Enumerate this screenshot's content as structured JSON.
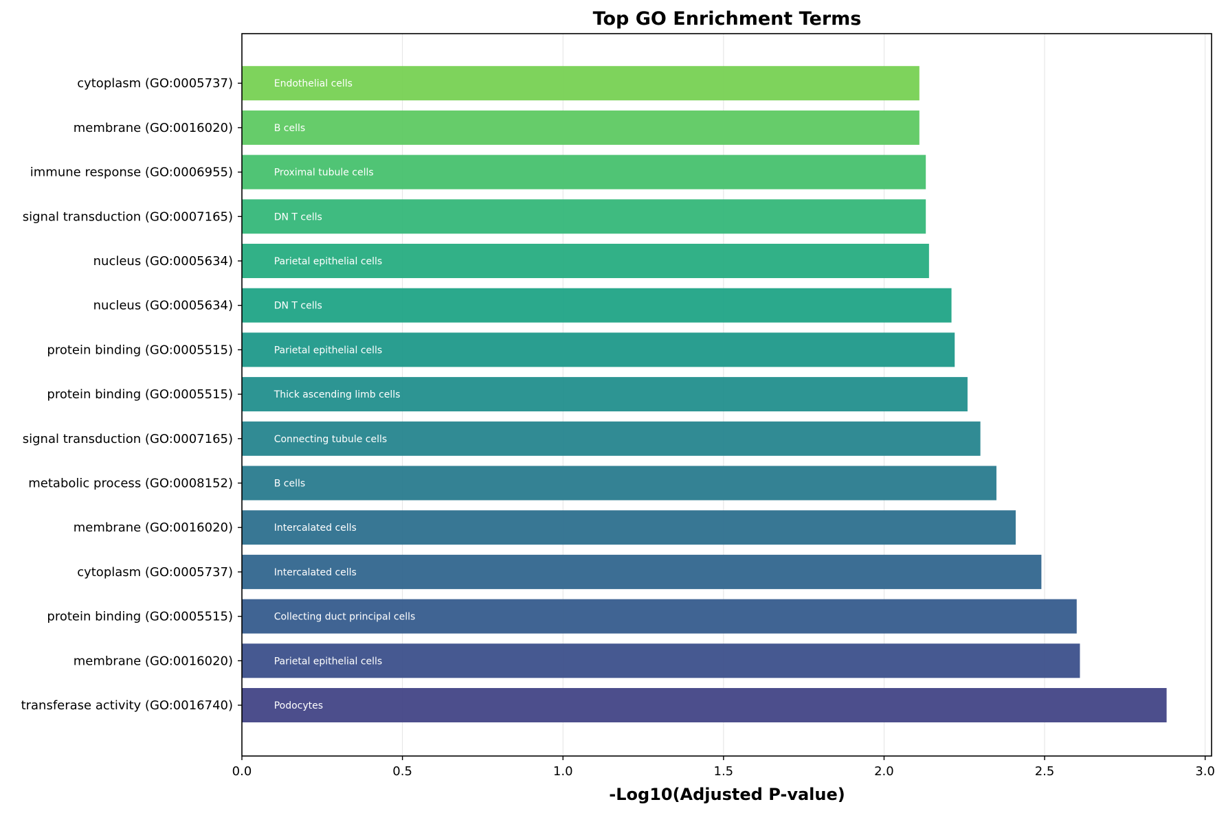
{
  "chart_data": {
    "type": "bar",
    "orientation": "horizontal",
    "title": "Top GO Enrichment Terms",
    "xlabel": "-Log10(Adjusted P-value)",
    "ylabel": "",
    "xlim": [
      0,
      3.02
    ],
    "xticks": [
      "0.0",
      "0.5",
      "1.0",
      "1.5",
      "2.0",
      "2.5",
      "3.0"
    ],
    "grid": "vertical, light gray",
    "colormap": "viridis",
    "categories": [
      "transferase activity (GO:0016740)",
      "membrane (GO:0016020)",
      "protein binding (GO:0005515)",
      "cytoplasm (GO:0005737)",
      "membrane (GO:0016020)",
      "metabolic process (GO:0008152)",
      "signal transduction (GO:0007165)",
      "protein binding (GO:0005515)",
      "protein binding (GO:0005515)",
      "nucleus (GO:0005634)",
      "nucleus (GO:0005634)",
      "signal transduction (GO:0007165)",
      "immune response (GO:0006955)",
      "membrane (GO:0016020)",
      "cytoplasm (GO:0005737)"
    ],
    "values": [
      2.88,
      2.61,
      2.6,
      2.49,
      2.41,
      2.35,
      2.3,
      2.26,
      2.22,
      2.21,
      2.14,
      2.13,
      2.13,
      2.11,
      2.11
    ],
    "bar_labels": [
      "Podocytes",
      "Parietal epithelial cells",
      "Collecting duct principal cells",
      "Intercalated cells",
      "Intercalated cells",
      "B cells",
      "Connecting tubule cells",
      "Thick ascending limb cells",
      "Parietal epithelial cells",
      "DN T cells",
      "Parietal epithelial cells",
      "DN T cells",
      "Proximal tubule cells",
      "B cells",
      "Endothelial cells"
    ],
    "colors": [
      "#424586",
      "#3c508b",
      "#365c8d",
      "#31668e",
      "#2d708e",
      "#297b8e",
      "#26858e",
      "#228f8d",
      "#1f998a",
      "#20a486",
      "#27ad81",
      "#35b779",
      "#47c16e",
      "#5ec962",
      "#77d153"
    ]
  }
}
